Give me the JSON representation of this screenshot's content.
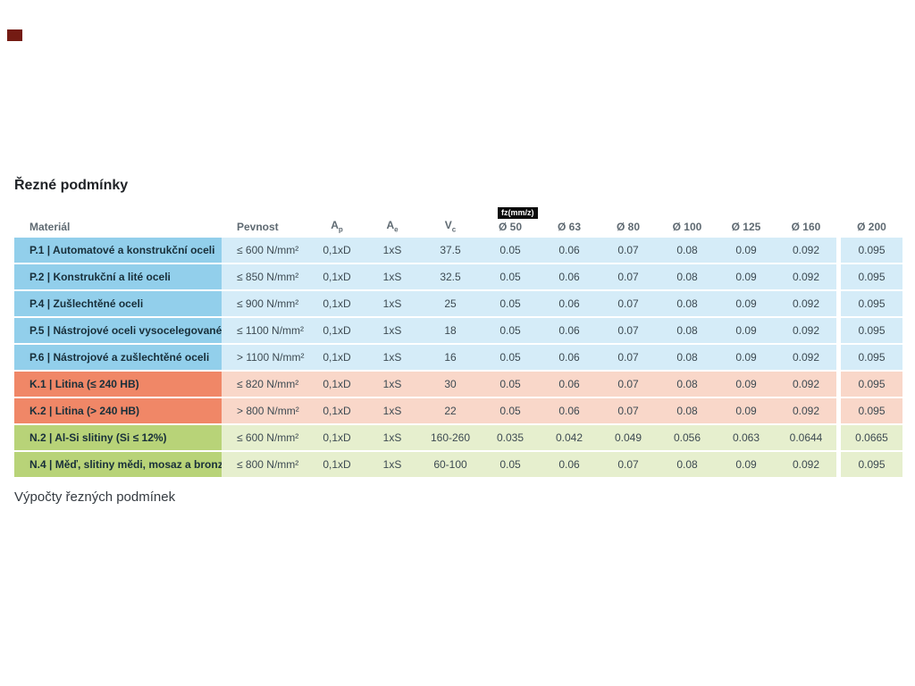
{
  "marker": {
    "color": "#741b13"
  },
  "chart_data": {
    "type": "table",
    "title": "Řezné podmínky",
    "footer_text": "Výpočty řezných podmínek",
    "headers": {
      "material": "Materiál",
      "strength": "Pevnost",
      "ap": {
        "base": "A",
        "sub": "p"
      },
      "ae": {
        "base": "A",
        "sub": "e"
      },
      "vc": {
        "base": "V",
        "sub": "c"
      },
      "fz_badge": "fz(mm/z)",
      "diameters": [
        "Ø 50",
        "Ø 63",
        "Ø 80",
        "Ø 100",
        "Ø 125",
        "Ø 160",
        "Ø 200"
      ]
    },
    "groups": {
      "P": {
        "color_dark": "#92cfeb",
        "color_light": "#d5ecf8"
      },
      "K": {
        "color_dark": "#f08767",
        "color_light": "#f9d7c9"
      },
      "N": {
        "color_dark": "#b8d378",
        "color_light": "#e6efce"
      }
    },
    "rows": [
      {
        "group": "P",
        "material": "P.1 | Automatové a konstrukční oceli",
        "strength": "≤ 600 N/mm²",
        "ap": "0,1xD",
        "ae": "1xS",
        "vc": "37.5",
        "fz": [
          "0.05",
          "0.06",
          "0.07",
          "0.08",
          "0.09",
          "0.092",
          "0.095"
        ]
      },
      {
        "group": "P",
        "material": "P.2 | Konstrukční a lité oceli",
        "strength": "≤ 850 N/mm²",
        "ap": "0,1xD",
        "ae": "1xS",
        "vc": "32.5",
        "fz": [
          "0.05",
          "0.06",
          "0.07",
          "0.08",
          "0.09",
          "0.092",
          "0.095"
        ]
      },
      {
        "group": "P",
        "material": "P.4 | Zušlechtěné oceli",
        "strength": "≤ 900 N/mm²",
        "ap": "0,1xD",
        "ae": "1xS",
        "vc": "25",
        "fz": [
          "0.05",
          "0.06",
          "0.07",
          "0.08",
          "0.09",
          "0.092",
          "0.095"
        ]
      },
      {
        "group": "P",
        "material": "P.5 | Nástrojové oceli vysocelegované",
        "strength": "≤ 1100 N/mm²",
        "ap": "0,1xD",
        "ae": "1xS",
        "vc": "18",
        "fz": [
          "0.05",
          "0.06",
          "0.07",
          "0.08",
          "0.09",
          "0.092",
          "0.095"
        ]
      },
      {
        "group": "P",
        "material": "P.6 | Nástrojové a zušlechtěné oceli",
        "strength": "> 1100 N/mm²",
        "ap": "0,1xD",
        "ae": "1xS",
        "vc": "16",
        "fz": [
          "0.05",
          "0.06",
          "0.07",
          "0.08",
          "0.09",
          "0.092",
          "0.095"
        ]
      },
      {
        "group": "K",
        "material": "K.1 | Litina (≤ 240 HB)",
        "strength": "≤ 820 N/mm²",
        "ap": "0,1xD",
        "ae": "1xS",
        "vc": "30",
        "fz": [
          "0.05",
          "0.06",
          "0.07",
          "0.08",
          "0.09",
          "0.092",
          "0.095"
        ]
      },
      {
        "group": "K",
        "material": "K.2 | Litina (> 240 HB)",
        "strength": "> 800 N/mm²",
        "ap": "0,1xD",
        "ae": "1xS",
        "vc": "22",
        "fz": [
          "0.05",
          "0.06",
          "0.07",
          "0.08",
          "0.09",
          "0.092",
          "0.095"
        ]
      },
      {
        "group": "N",
        "material": "N.2 | Al-Si slitiny (Si ≤ 12%)",
        "strength": "≤ 600 N/mm²",
        "ap": "0,1xD",
        "ae": "1xS",
        "vc": "160-260",
        "fz": [
          "0.035",
          "0.042",
          "0.049",
          "0.056",
          "0.063",
          "0.0644",
          "0.0665"
        ]
      },
      {
        "group": "N",
        "material": "N.4 | Měď, slitiny mědi, mosaz a bronz",
        "strength": "≤ 800 N/mm²",
        "ap": "0,1xD",
        "ae": "1xS",
        "vc": "60-100",
        "fz": [
          "0.05",
          "0.06",
          "0.07",
          "0.08",
          "0.09",
          "0.092",
          "0.095"
        ]
      }
    ]
  }
}
